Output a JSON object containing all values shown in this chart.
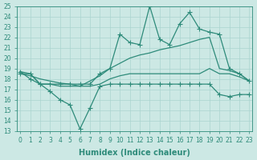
{
  "xlabel": "Humidex (Indice chaleur)",
  "x": [
    0,
    1,
    2,
    3,
    4,
    5,
    6,
    7,
    8,
    9,
    10,
    11,
    12,
    13,
    14,
    15,
    16,
    17,
    18,
    19,
    20,
    21,
    22,
    23
  ],
  "series": [
    {
      "name": "line_spiky_top",
      "y": [
        18.5,
        18.5,
        17.5,
        17.5,
        17.5,
        17.5,
        17.5,
        17.5,
        18.5,
        19.0,
        22.3,
        21.5,
        21.3,
        25.0,
        21.8,
        21.3,
        23.3,
        24.4,
        22.8,
        22.5,
        22.3,
        19.0,
        18.5,
        17.8
      ],
      "color": "#2e8b7a",
      "linewidth": 0.9,
      "marker": "+",
      "markersize": 4
    },
    {
      "name": "line_smooth_top",
      "y": [
        18.5,
        18.3,
        18.0,
        17.8,
        17.6,
        17.5,
        17.3,
        17.8,
        18.3,
        19.0,
        19.5,
        20.0,
        20.3,
        20.5,
        20.8,
        21.0,
        21.2,
        21.5,
        21.8,
        22.0,
        19.0,
        18.8,
        18.5,
        17.8
      ],
      "color": "#2e8b7a",
      "linewidth": 0.9,
      "marker": null,
      "markersize": 0
    },
    {
      "name": "line_flat",
      "y": [
        18.7,
        18.5,
        17.5,
        17.5,
        17.3,
        17.3,
        17.3,
        17.3,
        17.5,
        18.0,
        18.3,
        18.5,
        18.5,
        18.5,
        18.5,
        18.5,
        18.5,
        18.5,
        18.5,
        19.0,
        18.5,
        18.5,
        18.2,
        17.8
      ],
      "color": "#2e8b7a",
      "linewidth": 0.9,
      "marker": null,
      "markersize": 0
    },
    {
      "name": "line_spiky_bottom",
      "y": [
        18.7,
        18.0,
        17.5,
        16.8,
        16.0,
        15.5,
        13.2,
        15.2,
        17.3,
        17.5,
        17.5,
        17.5,
        17.5,
        17.5,
        17.5,
        17.5,
        17.5,
        17.5,
        17.5,
        17.5,
        16.5,
        16.3,
        16.5,
        16.5
      ],
      "color": "#2e8b7a",
      "linewidth": 0.9,
      "marker": "+",
      "markersize": 4
    }
  ],
  "ylim": [
    13,
    25
  ],
  "xlim": [
    -0.3,
    23.3
  ],
  "yticks": [
    13,
    14,
    15,
    16,
    17,
    18,
    19,
    20,
    21,
    22,
    23,
    24,
    25
  ],
  "xticks": [
    0,
    1,
    2,
    3,
    4,
    5,
    6,
    7,
    8,
    9,
    10,
    11,
    12,
    13,
    14,
    15,
    16,
    17,
    18,
    19,
    20,
    21,
    22,
    23
  ],
  "bg_color": "#cce8e4",
  "grid_color": "#aad4cf",
  "line_color": "#2e8b7a",
  "tick_fontsize": 5.5,
  "label_fontsize": 7
}
